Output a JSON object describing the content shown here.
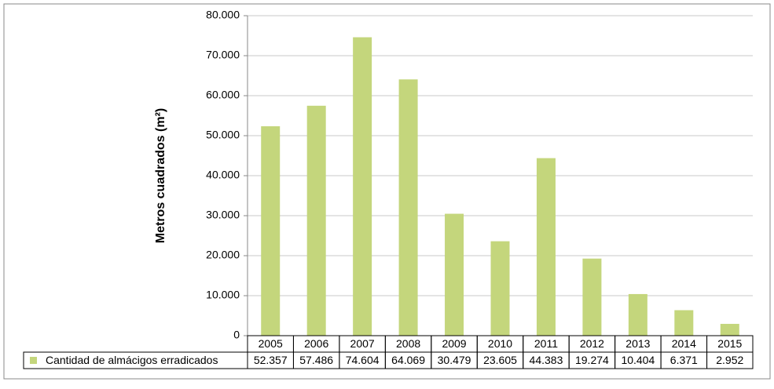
{
  "chart_data": {
    "type": "bar",
    "y_label": "Metros cuadrados (m²)",
    "categories": [
      "2005",
      "2006",
      "2007",
      "2008",
      "2009",
      "2010",
      "2011",
      "2012",
      "2013",
      "2014",
      "2015"
    ],
    "series": [
      {
        "name": "Cantidad de almácigos erradicados",
        "color": "#c4d67c",
        "values": [
          52357,
          57486,
          74604,
          64069,
          30479,
          23605,
          44383,
          19274,
          10404,
          6371,
          2952
        ],
        "value_labels": [
          "52.357",
          "57.486",
          "74.604",
          "64.069",
          "30.479",
          "23.605",
          "44.383",
          "19.274",
          "10.404",
          "6.371",
          "2.952"
        ]
      }
    ],
    "ylim": [
      0,
      80000
    ],
    "yticks": [
      0,
      {
        "value": 10000,
        "label": "10.000"
      },
      {
        "value": 20000,
        "label": "20.000"
      },
      {
        "value": 30000,
        "label": "30.000"
      },
      {
        "value": 40000,
        "label": "40.000"
      },
      {
        "value": 50000,
        "label": "50.000"
      },
      {
        "value": 60000,
        "label": "60.000"
      },
      {
        "value": 70000,
        "label": "70.000"
      },
      {
        "value": 80000,
        "label": "80.000"
      }
    ],
    "grid": true
  }
}
